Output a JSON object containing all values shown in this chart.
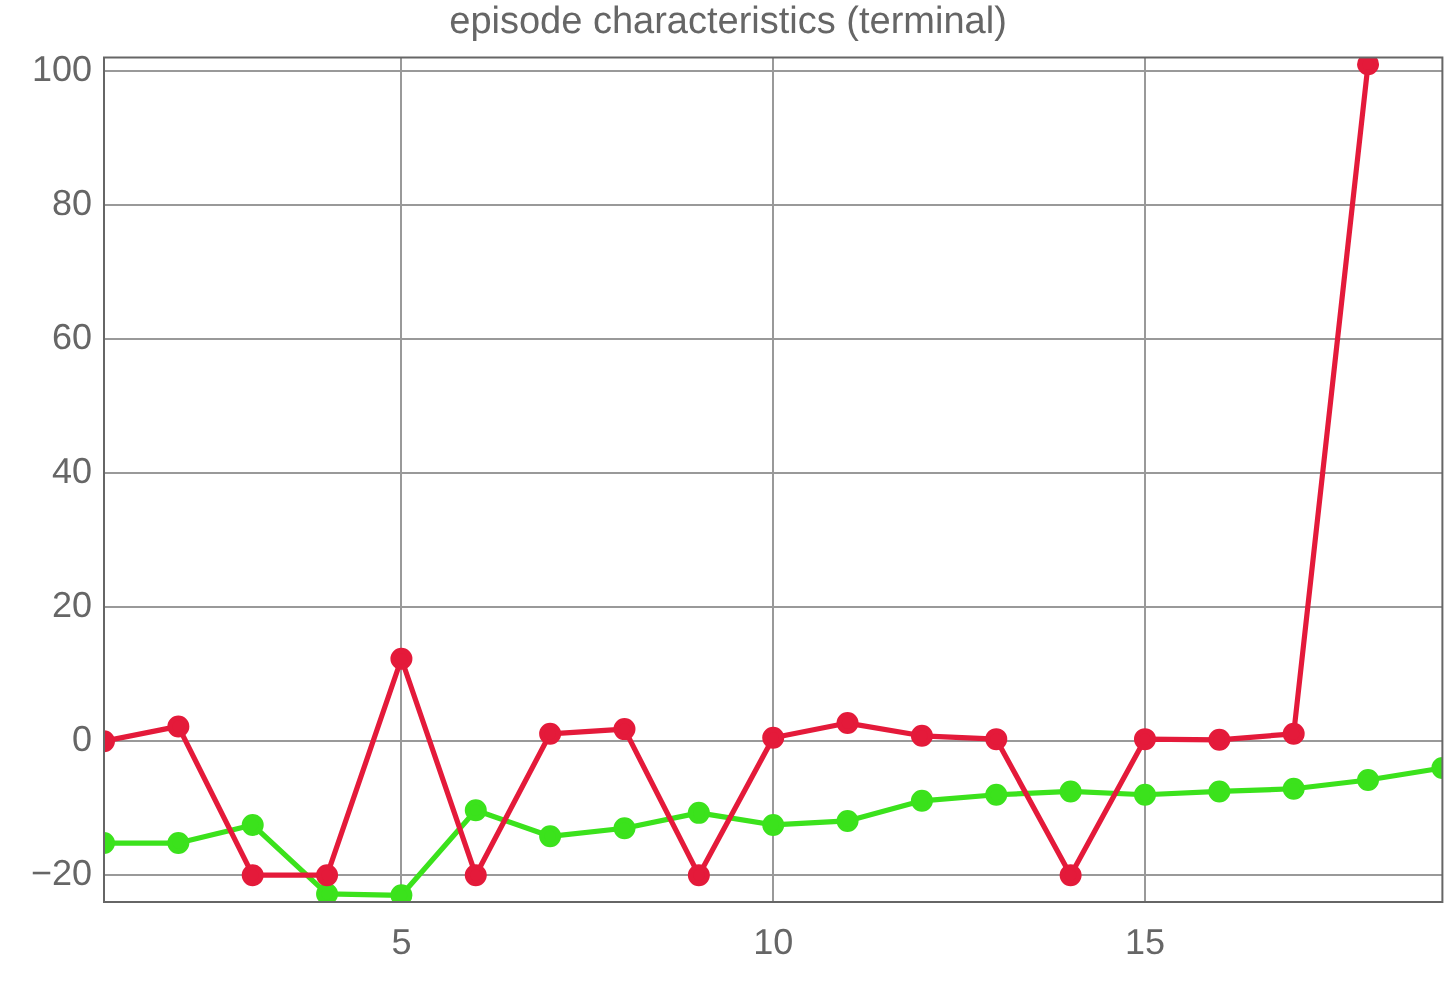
{
  "chart_data": {
    "type": "line",
    "title": "episode characteristics (terminal)",
    "x": [
      1,
      2,
      3,
      4,
      5,
      6,
      7,
      8,
      9,
      10,
      11,
      12,
      13,
      14,
      15,
      16,
      17,
      18,
      19
    ],
    "series": [
      {
        "color": "#e41a3a",
        "x": [
          1,
          2,
          3,
          4,
          5,
          6,
          7,
          8,
          9,
          10,
          11,
          12,
          13,
          14,
          15,
          16,
          17,
          18
        ],
        "values": [
          0,
          2.2,
          -20,
          -20,
          12.3,
          -20,
          1.1,
          1.8,
          -20,
          0.5,
          2.7,
          0.8,
          0.3,
          -20,
          0.3,
          0.2,
          1.1,
          101
        ]
      },
      {
        "color": "#3be21c",
        "values": [
          -15.2,
          -15.2,
          -12.5,
          -22.8,
          -23,
          -10.3,
          -14.2,
          -13,
          -10.7,
          -12.5,
          -11.9,
          -8.9,
          -8,
          -7.5,
          -8,
          -7.5,
          -7.1,
          -5.8,
          -4
        ]
      }
    ],
    "xlim": [
      1,
      19
    ],
    "xticks": [
      5,
      10,
      15
    ],
    "ylim": [
      -24,
      102
    ],
    "yticks": [
      -20,
      0,
      20,
      40,
      60,
      80,
      100
    ],
    "grid": true,
    "legend": false,
    "marker": "circle",
    "line_style": "solid"
  }
}
